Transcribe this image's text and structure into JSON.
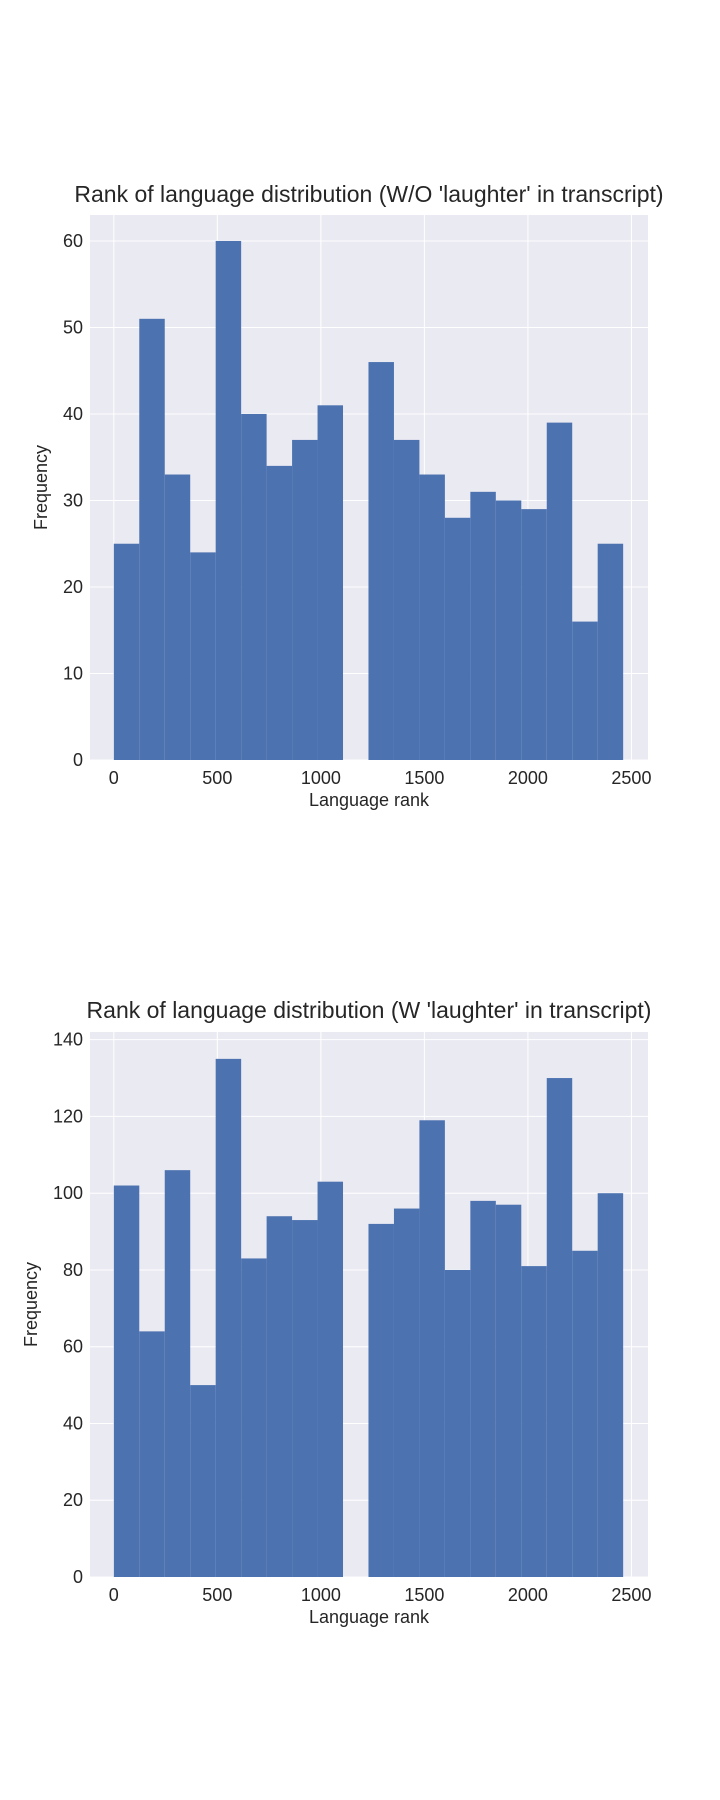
{
  "chart_data": [
    {
      "type": "bar",
      "title": "Rank of language distribution (W/O 'laughter' in transcript)",
      "xlabel": "Language rank",
      "ylabel": "Frequency",
      "xlim": [
        -115,
        2580
      ],
      "ylim": [
        0,
        63
      ],
      "xticks": [
        0,
        500,
        1000,
        1500,
        2000,
        2500
      ],
      "yticks": [
        0,
        10,
        20,
        30,
        40,
        50,
        60
      ],
      "bin_width": 123,
      "bins": [
        {
          "x0": 0,
          "x1": 123,
          "value": 25
        },
        {
          "x0": 123,
          "x1": 246,
          "value": 51
        },
        {
          "x0": 246,
          "x1": 369,
          "value": 33
        },
        {
          "x0": 369,
          "x1": 492,
          "value": 24
        },
        {
          "x0": 492,
          "x1": 615,
          "value": 60
        },
        {
          "x0": 615,
          "x1": 738,
          "value": 40
        },
        {
          "x0": 738,
          "x1": 861,
          "value": 34
        },
        {
          "x0": 861,
          "x1": 984,
          "value": 37
        },
        {
          "x0": 984,
          "x1": 1107,
          "value": 41
        },
        {
          "x0": 1107,
          "x1": 1230,
          "value": 0
        },
        {
          "x0": 1230,
          "x1": 1353,
          "value": 46
        },
        {
          "x0": 1353,
          "x1": 1476,
          "value": 37
        },
        {
          "x0": 1476,
          "x1": 1599,
          "value": 33
        },
        {
          "x0": 1599,
          "x1": 1722,
          "value": 28
        },
        {
          "x0": 1722,
          "x1": 1845,
          "value": 31
        },
        {
          "x0": 1845,
          "x1": 1968,
          "value": 30
        },
        {
          "x0": 1968,
          "x1": 2091,
          "value": 29
        },
        {
          "x0": 2091,
          "x1": 2214,
          "value": 39
        },
        {
          "x0": 2214,
          "x1": 2337,
          "value": 16
        },
        {
          "x0": 2337,
          "x1": 2460,
          "value": 25
        }
      ],
      "grid": true,
      "bar_color": "#4c72b0",
      "plot_bg": "#eaeaf2"
    },
    {
      "type": "bar",
      "title": "Rank of language distribution (W 'laughter' in transcript)",
      "xlabel": "Language rank",
      "ylabel": "Frequency",
      "xlim": [
        -115,
        2580
      ],
      "ylim": [
        0,
        142
      ],
      "xticks": [
        0,
        500,
        1000,
        1500,
        2000,
        2500
      ],
      "yticks": [
        0,
        20,
        40,
        60,
        80,
        100,
        120,
        140
      ],
      "bin_width": 123,
      "bins": [
        {
          "x0": 0,
          "x1": 123,
          "value": 102
        },
        {
          "x0": 123,
          "x1": 246,
          "value": 64
        },
        {
          "x0": 246,
          "x1": 369,
          "value": 106
        },
        {
          "x0": 369,
          "x1": 492,
          "value": 50
        },
        {
          "x0": 492,
          "x1": 615,
          "value": 135
        },
        {
          "x0": 615,
          "x1": 738,
          "value": 83
        },
        {
          "x0": 738,
          "x1": 861,
          "value": 94
        },
        {
          "x0": 861,
          "x1": 984,
          "value": 93
        },
        {
          "x0": 984,
          "x1": 1107,
          "value": 103
        },
        {
          "x0": 1107,
          "x1": 1230,
          "value": 0
        },
        {
          "x0": 1230,
          "x1": 1353,
          "value": 92
        },
        {
          "x0": 1353,
          "x1": 1476,
          "value": 96
        },
        {
          "x0": 1476,
          "x1": 1599,
          "value": 119
        },
        {
          "x0": 1599,
          "x1": 1722,
          "value": 80
        },
        {
          "x0": 1722,
          "x1": 1845,
          "value": 98
        },
        {
          "x0": 1845,
          "x1": 1968,
          "value": 97
        },
        {
          "x0": 1968,
          "x1": 2091,
          "value": 81
        },
        {
          "x0": 2091,
          "x1": 2214,
          "value": 130
        },
        {
          "x0": 2214,
          "x1": 2337,
          "value": 85
        },
        {
          "x0": 2337,
          "x1": 2460,
          "value": 100
        }
      ],
      "grid": true,
      "bar_color": "#4c72b0",
      "plot_bg": "#eaeaf2"
    }
  ]
}
